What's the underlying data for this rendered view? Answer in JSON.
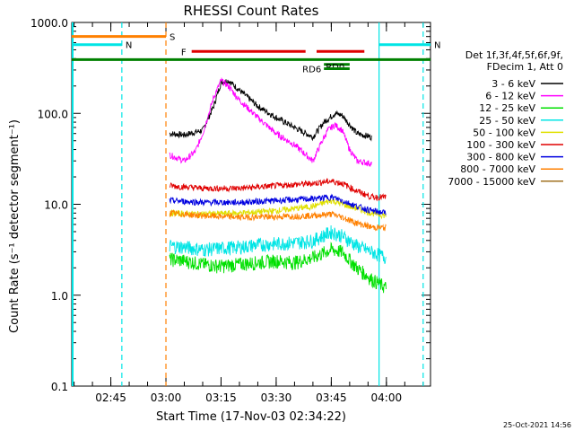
{
  "colors": {
    "background": "#ffffff",
    "axes": "#000000",
    "cyan": "#00e5e5",
    "orange": "#ff8000",
    "red": "#e00000",
    "green": "#008000"
  },
  "chart_data": {
    "type": "line",
    "title": "RHESSI Count Rates",
    "xlabel": "Start Time (17-Nov-03 02:34:22)",
    "ylabel": "Count Rate (s⁻¹ detector segment⁻¹)",
    "yscale": "log",
    "ylim": [
      0.1,
      1000
    ],
    "xlim": [
      "02:34:22",
      "04:12:00"
    ],
    "y_tick_labels": [
      "0.1",
      "1.0",
      "10.0",
      "100.0",
      "1000.0"
    ],
    "x_tick_labels": [
      "02:45",
      "03:00",
      "03:15",
      "03:30",
      "03:45",
      "04:00"
    ],
    "timestamp": "25-Oct-2021 14:56",
    "legend_header": [
      "Det 1f,3f,4f,5f,6f,9f,",
      "FDecim 1, Att 0"
    ],
    "legend_position": "right",
    "time_axis_start": "02:34:22",
    "series": [
      {
        "name": "3 - 6 keV",
        "color": "#000000",
        "x": [
          "03:01",
          "03:05",
          "03:10",
          "03:13",
          "03:15",
          "03:17",
          "03:20",
          "03:25",
          "03:30",
          "03:35",
          "03:40",
          "03:43",
          "03:46",
          "03:48",
          "03:50",
          "03:52",
          "03:56"
        ],
        "y": [
          60,
          58,
          65,
          120,
          220,
          230,
          180,
          120,
          90,
          70,
          55,
          80,
          100,
          95,
          75,
          60,
          55
        ]
      },
      {
        "name": "6 - 12 keV",
        "color": "#ff00ff",
        "x": [
          "03:01",
          "03:05",
          "03:08",
          "03:10",
          "03:13",
          "03:15",
          "03:17",
          "03:20",
          "03:25",
          "03:30",
          "03:35",
          "03:40",
          "03:42",
          "03:44",
          "03:46",
          "03:48",
          "03:50",
          "03:52",
          "03:56"
        ],
        "y": [
          35,
          30,
          38,
          60,
          150,
          230,
          200,
          140,
          90,
          60,
          45,
          30,
          45,
          65,
          75,
          65,
          40,
          30,
          28
        ]
      },
      {
        "name": "12 - 25 keV",
        "color": "#00e000",
        "x": [
          "03:01",
          "03:05",
          "03:10",
          "03:15",
          "03:20",
          "03:25",
          "03:30",
          "03:35",
          "03:40",
          "03:45",
          "03:48",
          "03:52",
          "03:56",
          "04:00"
        ],
        "y": [
          2.5,
          2.4,
          2.2,
          2.1,
          2.2,
          2.3,
          2.4,
          2.3,
          2.6,
          3.2,
          3.0,
          2.0,
          1.5,
          1.2
        ]
      },
      {
        "name": "25 - 50 keV",
        "color": "#00e5e5",
        "x": [
          "03:01",
          "03:05",
          "03:10",
          "03:15",
          "03:20",
          "03:25",
          "03:30",
          "03:35",
          "03:40",
          "03:45",
          "03:48",
          "03:52",
          "03:56",
          "04:00"
        ],
        "y": [
          3.5,
          3.4,
          3.2,
          3.3,
          3.4,
          3.6,
          3.7,
          3.8,
          4.0,
          5.0,
          4.5,
          3.5,
          3.0,
          2.6
        ]
      },
      {
        "name": "50 - 100 keV",
        "color": "#e0e000",
        "x": [
          "03:01",
          "03:10",
          "03:20",
          "03:30",
          "03:40",
          "03:45",
          "03:48",
          "03:52",
          "03:56",
          "04:00"
        ],
        "y": [
          8.0,
          7.8,
          8.0,
          8.5,
          9.5,
          11,
          10,
          9.0,
          8.0,
          7.5
        ]
      },
      {
        "name": "100 - 300 keV",
        "color": "#e00000",
        "x": [
          "03:01",
          "03:10",
          "03:20",
          "03:30",
          "03:40",
          "03:45",
          "03:48",
          "03:52",
          "03:56",
          "04:00"
        ],
        "y": [
          16,
          15,
          15,
          16,
          17,
          18,
          17,
          14,
          12,
          12
        ]
      },
      {
        "name": "300 - 800 keV",
        "color": "#0000e0",
        "x": [
          "03:01",
          "03:10",
          "03:20",
          "03:30",
          "03:40",
          "03:45",
          "03:48",
          "03:52",
          "03:56",
          "04:00"
        ],
        "y": [
          11,
          10.5,
          10.5,
          11,
          11.5,
          12,
          11,
          9.5,
          8.5,
          8.0
        ]
      },
      {
        "name": "800 - 7000 keV",
        "color": "#ff8000",
        "x": [
          "03:01",
          "03:10",
          "03:20",
          "03:30",
          "03:40",
          "03:45",
          "03:48",
          "03:52",
          "03:56",
          "04:00"
        ],
        "y": [
          8.0,
          7.5,
          7.2,
          7.3,
          7.5,
          7.8,
          7.2,
          6.2,
          5.6,
          5.5
        ]
      },
      {
        "name": "7000 - 15000 keV",
        "color": "#a07020",
        "x": [],
        "y": []
      }
    ],
    "annotations": [
      {
        "label": "S",
        "color": "#ff8000",
        "x_start": "02:34:22",
        "x_end": "03:00",
        "y": 700
      },
      {
        "label": "N",
        "color": "#00e5e5",
        "x_start": "02:34:22",
        "x_end": "02:48",
        "y": 570
      },
      {
        "label": "N",
        "color": "#00e5e5",
        "x_start": "03:58",
        "x_end": "04:12",
        "y": 570
      },
      {
        "label": "F",
        "color": "#e00000",
        "x_start": "03:07",
        "x_end": "03:38",
        "y": 480
      },
      {
        "label": "",
        "color": "#e00000",
        "x_start": "03:41",
        "x_end": "03:54",
        "y": 480
      },
      {
        "label": "",
        "color": "#008000",
        "x_start": "02:34:22",
        "x_end": "04:12",
        "y": 390
      },
      {
        "label": "RD0",
        "color": "#008000",
        "x_start": "03:43",
        "x_end": "03:50",
        "y": 345
      },
      {
        "label": "RD6",
        "color": "#008000",
        "x_start": "03:43",
        "x_end": "03:50",
        "y": 310
      }
    ],
    "vertical_lines": [
      {
        "x": "02:48",
        "color": "#00e5e5",
        "style": "dashed"
      },
      {
        "x": "03:00",
        "color": "#ff8000",
        "style": "dashed"
      },
      {
        "x": "03:58",
        "color": "#00e5e5",
        "style": "solid"
      },
      {
        "x": "04:10",
        "color": "#00e5e5",
        "style": "dashed"
      }
    ]
  }
}
